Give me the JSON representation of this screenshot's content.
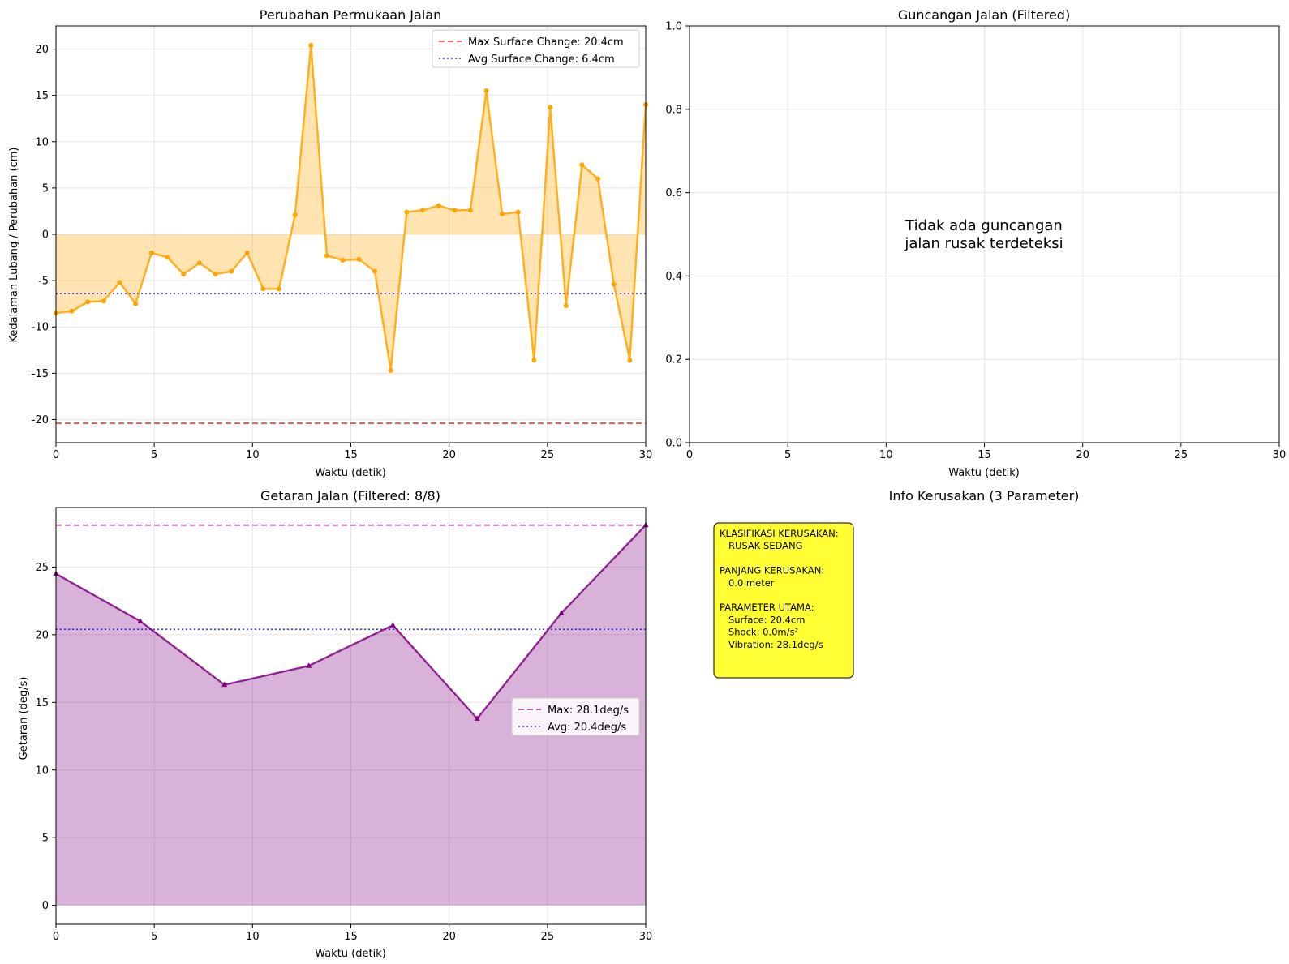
{
  "chart_data": [
    {
      "type": "line",
      "title": "Perubahan Permukaan Jalan",
      "xlabel": "Waktu (detik)",
      "ylabel": "Kedalaman Lubang / Perubahan (cm)",
      "xlim": [
        0,
        30
      ],
      "ylim": [
        -22.5,
        22.5
      ],
      "xticks": [
        0,
        5,
        10,
        15,
        20,
        25,
        30
      ],
      "yticks": [
        -20,
        -15,
        -10,
        -5,
        0,
        5,
        10,
        15,
        20
      ],
      "grid": true,
      "fill": "between-zero",
      "legend_position": "top-right",
      "series": [
        {
          "x": [
            0,
            0.81,
            1.62,
            2.43,
            3.24,
            4.05,
            4.86,
            5.68,
            6.49,
            7.3,
            8.11,
            8.92,
            9.73,
            10.54,
            11.35,
            12.16,
            12.97,
            13.78,
            14.59,
            15.41,
            16.22,
            17.03,
            17.84,
            18.65,
            19.46,
            20.27,
            21.08,
            21.89,
            22.7,
            23.51,
            24.32,
            25.14,
            25.95,
            26.76,
            27.57,
            28.38,
            29.19,
            30
          ],
          "values": [
            -8.5,
            -8.3,
            -7.3,
            -7.2,
            -5.2,
            -7.5,
            -2.0,
            -2.5,
            -4.3,
            -3.1,
            -4.3,
            -4.0,
            -2.0,
            -5.9,
            -5.9,
            2.1,
            20.4,
            -2.3,
            -2.8,
            -2.7,
            -4.0,
            -14.7,
            2.4,
            2.6,
            3.1,
            2.6,
            2.6,
            15.5,
            2.2,
            2.4,
            -13.6,
            13.7,
            -7.7,
            7.5,
            6.0,
            -5.4,
            -13.6,
            14.0
          ],
          "color": "#FFA500"
        }
      ],
      "reference_lines": [
        {
          "name": "Max Surface Change: 20.4cm",
          "y": -20.4,
          "color": "#FF0000",
          "style": "dashed"
        },
        {
          "name": "Avg Surface Change: 6.4cm",
          "y": -6.4,
          "color": "#0000FF",
          "style": "dotted"
        }
      ]
    },
    {
      "type": "line",
      "title": "Guncangan Jalan (Filtered)",
      "xlabel": "Waktu (detik)",
      "xlim": [
        0,
        30
      ],
      "ylim": [
        0,
        1
      ],
      "xticks": [
        0,
        5,
        10,
        15,
        20,
        25,
        30
      ],
      "yticks": [
        "0.0",
        "0.2",
        "0.4",
        "0.6",
        "0.8",
        "1.0"
      ],
      "grid": true,
      "annotation": [
        "Tidak ada guncangan",
        "jalan rusak terdeteksi"
      ]
    },
    {
      "type": "area",
      "title": "Getaran Jalan (Filtered: 8/8)",
      "xlabel": "Waktu (detik)",
      "ylabel": "Getaran (deg/s)",
      "xlim": [
        0,
        30
      ],
      "ylim": [
        -1.4,
        29.4
      ],
      "xticks": [
        0,
        5,
        10,
        15,
        20,
        25,
        30
      ],
      "yticks": [
        0,
        5,
        10,
        15,
        20,
        25
      ],
      "grid": true,
      "legend_position": "center-right",
      "series": [
        {
          "x": [
            0,
            4.29,
            8.57,
            12.86,
            17.14,
            21.43,
            25.71,
            30
          ],
          "values": [
            24.5,
            21.0,
            16.3,
            17.7,
            20.7,
            13.8,
            21.6,
            28.1
          ],
          "color": "#800080",
          "marker": "triangle"
        }
      ],
      "reference_lines": [
        {
          "name": "Max: 28.1deg/s",
          "y": 28.1,
          "color": "#800080",
          "style": "dashed"
        },
        {
          "name": "Avg: 20.4deg/s",
          "y": 20.4,
          "color": "#0000FF",
          "style": "dotted"
        }
      ]
    },
    {
      "type": "table",
      "title": "Info Kerusakan (3 Parameter)",
      "box_color": "#FFFF33",
      "lines": [
        "KLASIFIKASI KERUSAKAN:",
        "   RUSAK SEDANG",
        "",
        "PANJANG KERUSAKAN:",
        "   0.0 meter",
        "",
        "PARAMETER UTAMA:",
        "   Surface: 20.4cm",
        "   Shock: 0.0m/s²",
        "   Vibration: 28.1deg/s"
      ]
    }
  ]
}
